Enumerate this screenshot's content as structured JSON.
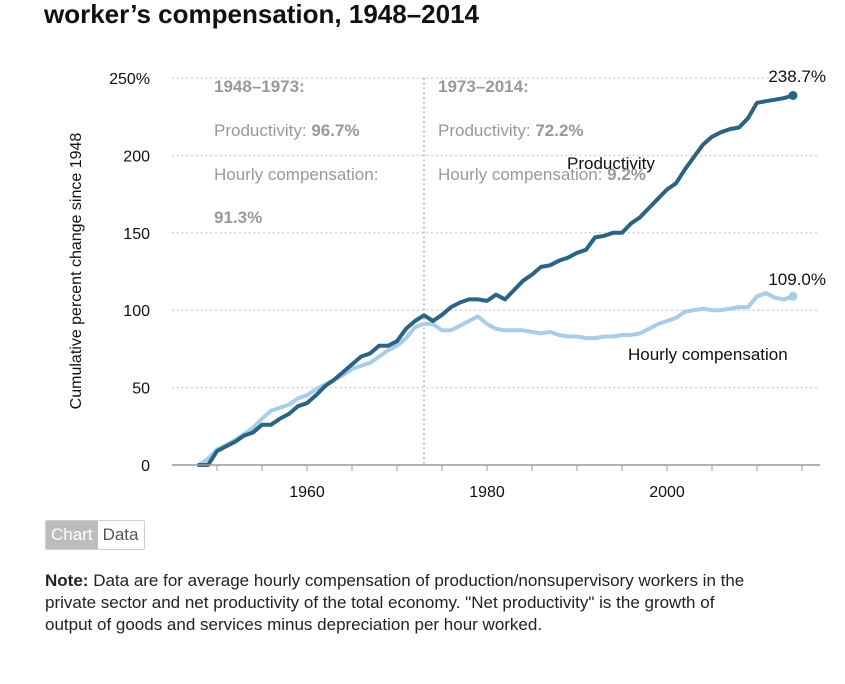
{
  "header": {
    "title_visible": "worker’s compensation, 1948–2014"
  },
  "tabs": [
    {
      "label": "Chart",
      "active": true
    },
    {
      "label": "Data",
      "active": false
    }
  ],
  "note": {
    "label": "Note:",
    "text": "Data are for average hourly compensation of production/nonsupervisory workers in the private sector and net productivity of the total economy. \"Net productivity\" is the growth of output of goods and services minus depreciation per hour worked."
  },
  "colors": {
    "productivity": "#2a6384",
    "compensation": "#a8cde8",
    "grid": "#cccccc",
    "annotation": "#999999"
  },
  "chart_data": {
    "type": "line",
    "ylabel": "Cumulative percent change since 1948",
    "ylim": [
      0,
      250
    ],
    "xlim": [
      1945,
      2017
    ],
    "yticks": [
      {
        "value": 0,
        "label": "0"
      },
      {
        "value": 50,
        "label": "50"
      },
      {
        "value": 100,
        "label": "100"
      },
      {
        "value": 150,
        "label": "150"
      },
      {
        "value": 200,
        "label": "200"
      },
      {
        "value": 250,
        "label": "250%"
      }
    ],
    "xticks": [
      {
        "value": 1960,
        "label": "1960"
      },
      {
        "value": 1980,
        "label": "1980"
      },
      {
        "value": 2000,
        "label": "2000"
      }
    ],
    "grid": true,
    "divider_year": 1973,
    "periods": [
      {
        "heading": "1948–1973:",
        "productivity_label": "Productivity:",
        "productivity_value": "96.7%",
        "compensation_label": "Hourly compensation:",
        "compensation_value": "91.3%"
      },
      {
        "heading": "1973–2014:",
        "productivity_label": "Productivity:",
        "productivity_value": "72.2%",
        "compensation_label": "Hourly compensation:",
        "compensation_value": "9.2%"
      }
    ],
    "series": [
      {
        "name": "Productivity",
        "end_label": "238.7%",
        "x": [
          1948,
          1949,
          1950,
          1951,
          1952,
          1953,
          1954,
          1955,
          1956,
          1957,
          1958,
          1959,
          1960,
          1961,
          1962,
          1963,
          1964,
          1965,
          1966,
          1967,
          1968,
          1969,
          1970,
          1971,
          1972,
          1973,
          1974,
          1975,
          1976,
          1977,
          1978,
          1979,
          1980,
          1981,
          1982,
          1983,
          1984,
          1985,
          1986,
          1987,
          1988,
          1989,
          1990,
          1991,
          1992,
          1993,
          1994,
          1995,
          1996,
          1997,
          1998,
          1999,
          2000,
          2001,
          2002,
          2003,
          2004,
          2005,
          2006,
          2007,
          2008,
          2009,
          2010,
          2011,
          2012,
          2013,
          2014
        ],
        "values": [
          0,
          0,
          9,
          12,
          15,
          19,
          21,
          26,
          26,
          30,
          33,
          38,
          40,
          45,
          51,
          55,
          60,
          65,
          70,
          72,
          77,
          77,
          80,
          88,
          93,
          96.7,
          93,
          97,
          102,
          105,
          107,
          107,
          106,
          110,
          107,
          113,
          119,
          123,
          128,
          129,
          132,
          134,
          137,
          139,
          147,
          148,
          150,
          150,
          156,
          160,
          166,
          172,
          178,
          182,
          191,
          199,
          207,
          212,
          215,
          217,
          218,
          224,
          234,
          235,
          236,
          237,
          238.7
        ]
      },
      {
        "name": "Hourly compensation",
        "end_label": "109.0%",
        "x": [
          1948,
          1949,
          1950,
          1951,
          1952,
          1953,
          1954,
          1955,
          1956,
          1957,
          1958,
          1959,
          1960,
          1961,
          1962,
          1963,
          1964,
          1965,
          1966,
          1967,
          1968,
          1969,
          1970,
          1971,
          1972,
          1973,
          1974,
          1975,
          1976,
          1977,
          1978,
          1979,
          1980,
          1981,
          1982,
          1983,
          1984,
          1985,
          1986,
          1987,
          1988,
          1989,
          1990,
          1991,
          1992,
          1993,
          1994,
          1995,
          1996,
          1997,
          1998,
          1999,
          2000,
          2001,
          2002,
          2003,
          2004,
          2005,
          2006,
          2007,
          2008,
          2009,
          2010,
          2011,
          2012,
          2013,
          2014
        ],
        "values": [
          0,
          4,
          10,
          13,
          16,
          20,
          24,
          30,
          35,
          37,
          39,
          43,
          45,
          49,
          52,
          55,
          58,
          62,
          64,
          66,
          70,
          74,
          77,
          82,
          89,
          91.3,
          91,
          87,
          87,
          90,
          93,
          96,
          91,
          88,
          87,
          87,
          87,
          86,
          85,
          86,
          84,
          83,
          83,
          82,
          82,
          83,
          83,
          84,
          84,
          85,
          88,
          91,
          93,
          95,
          99,
          100,
          101,
          100,
          100,
          101,
          102,
          102,
          109,
          111,
          108,
          107,
          109.0
        ]
      }
    ]
  }
}
